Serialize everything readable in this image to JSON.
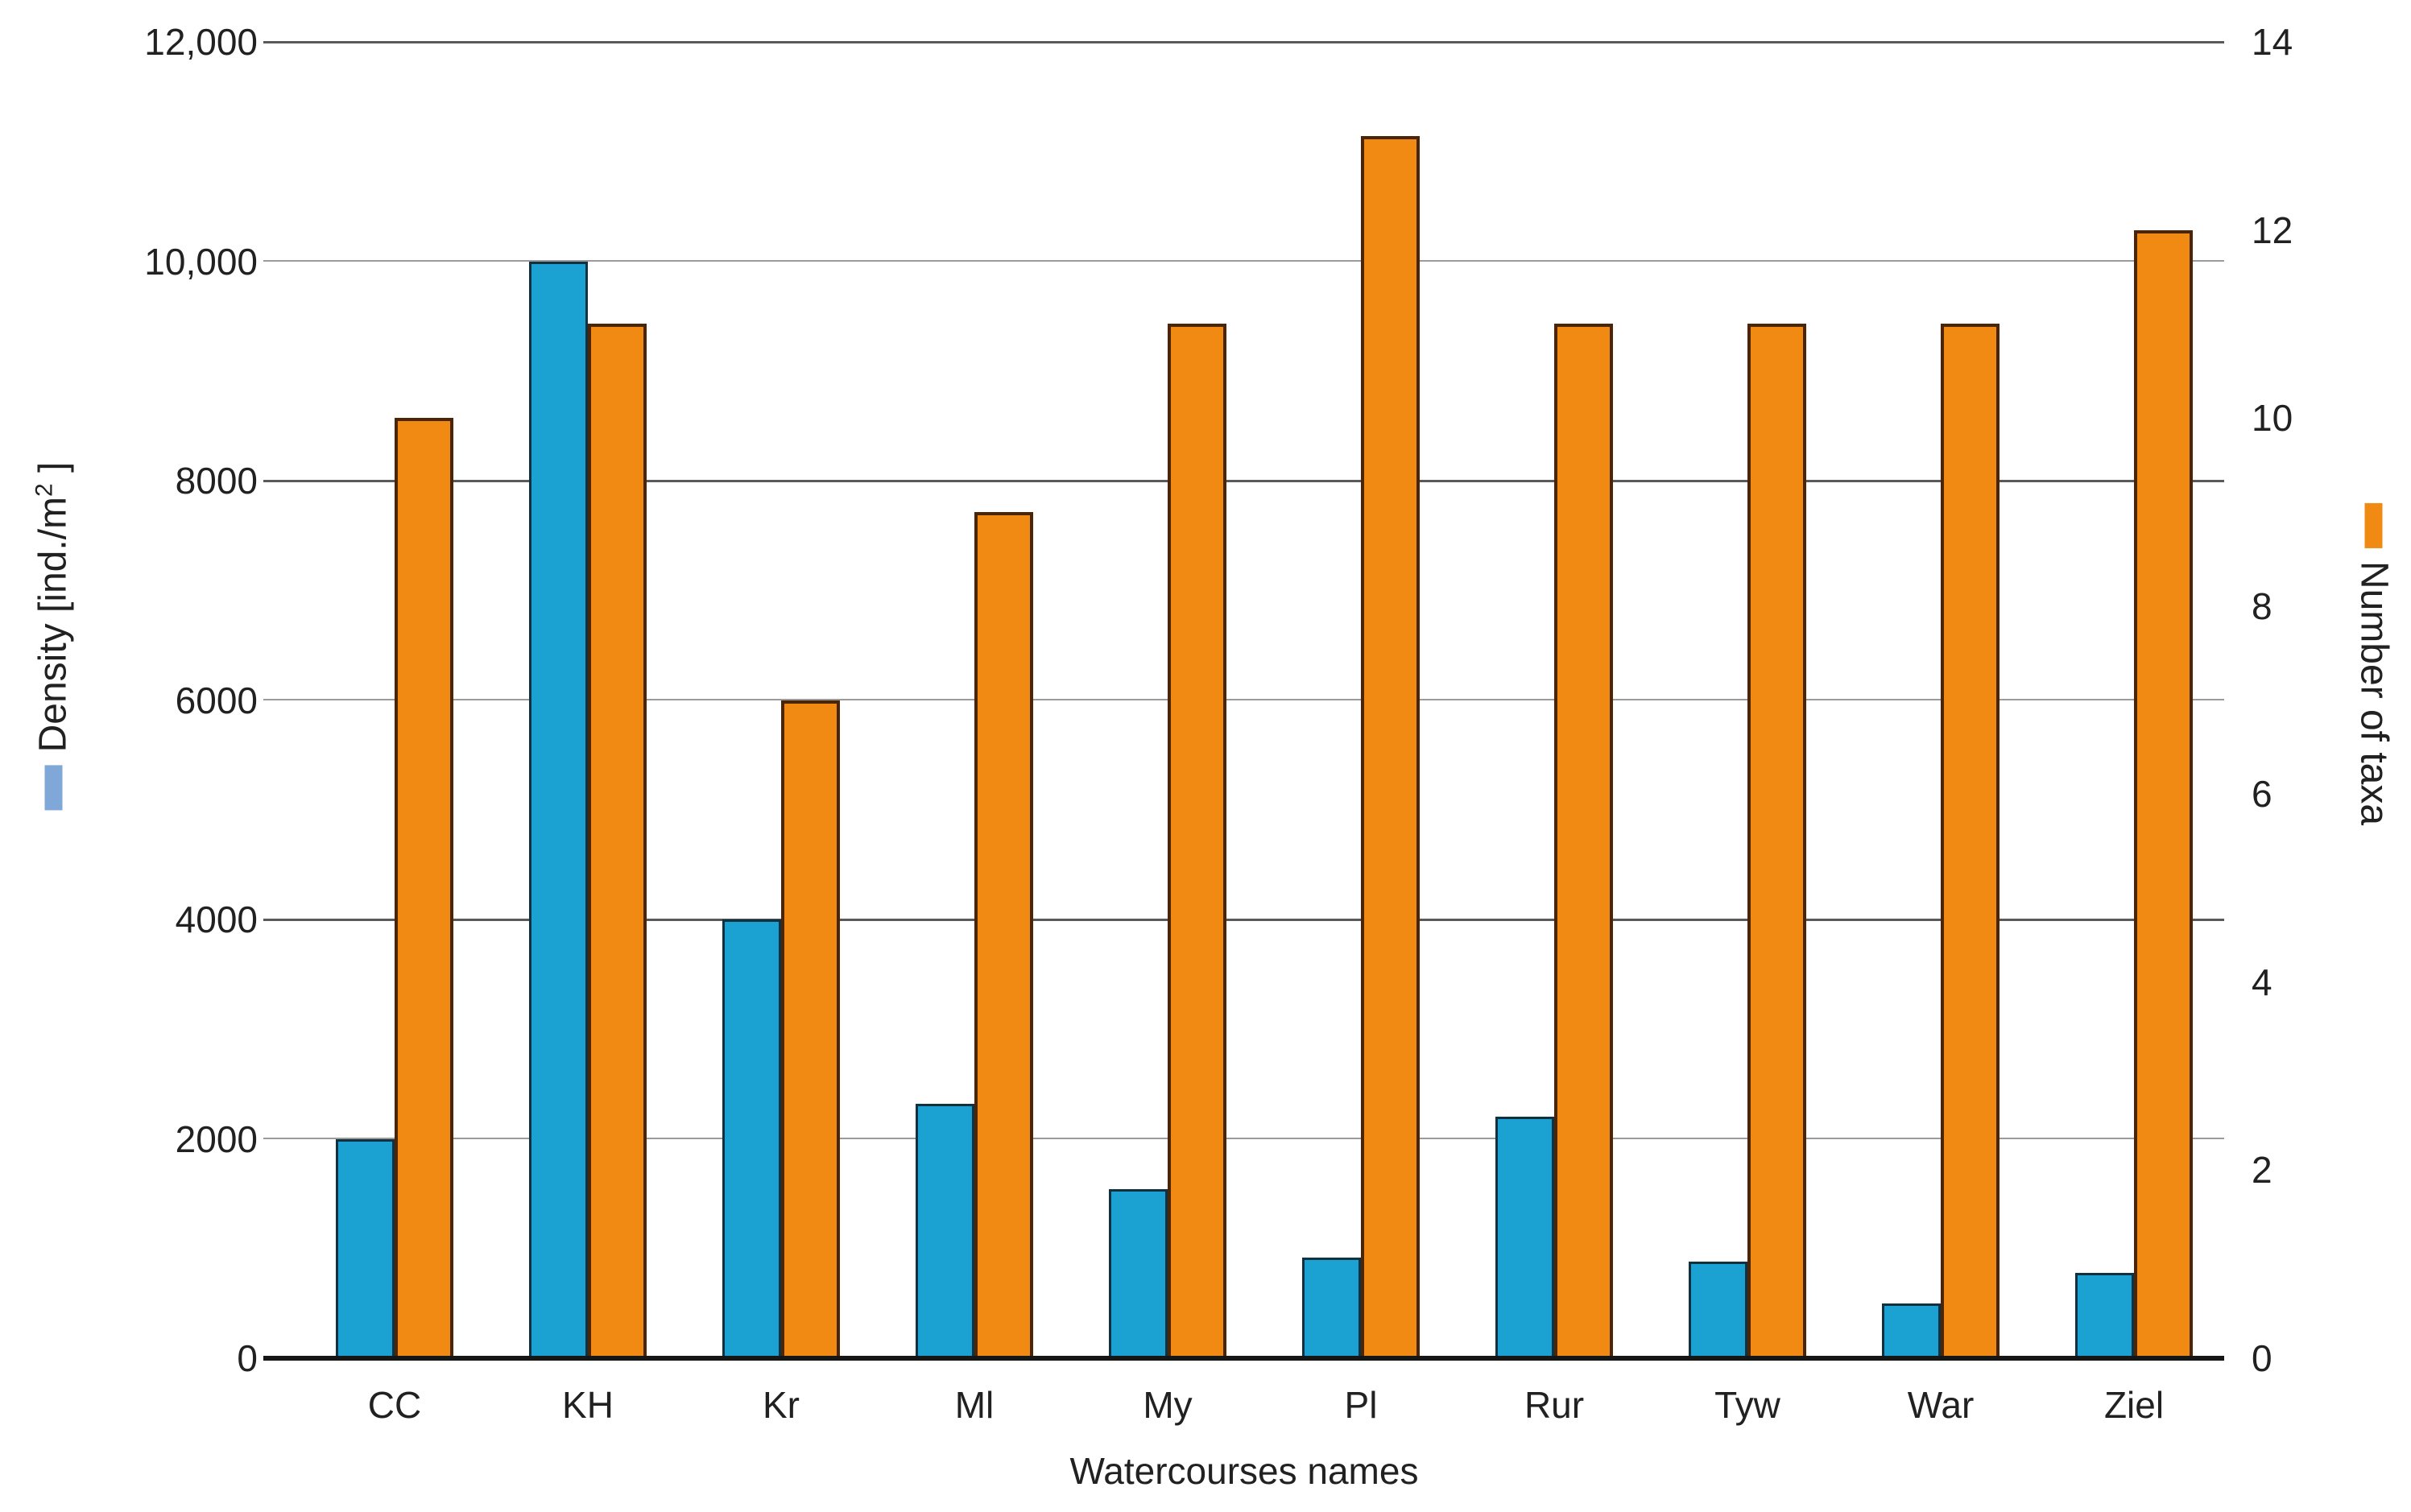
{
  "chart_data": {
    "type": "bar",
    "dual_axis": true,
    "title": "",
    "xlabel": "Watercourses names",
    "categories": [
      "CC",
      "KH",
      "Kr",
      "Ml",
      "My",
      "Pl",
      "Rur",
      "Tyw",
      "War",
      "Ziel"
    ],
    "series": [
      {
        "name": "Density [ind./m2]",
        "axis": "left",
        "type": "bar",
        "color": "#1BA1D2",
        "border_color": "#0F3140",
        "legend_swatch_color": "#7FA8D8",
        "values": [
          2000,
          10000,
          4000,
          2320,
          1540,
          920,
          2200,
          880,
          500,
          780
        ]
      },
      {
        "name": "Number of taxa",
        "axis": "right",
        "type": "bar",
        "color": "#F08A12",
        "border_color": "#4A2508",
        "legend_swatch_color": "#F08A12",
        "values": [
          10,
          11,
          7,
          9,
          11,
          13,
          11,
          11,
          11,
          12
        ]
      }
    ],
    "left_axis": {
      "label_prefix": "Density [ind./m",
      "label_sup": "2",
      "label_suffix": " ]",
      "min": 0,
      "max": 12000,
      "tick_values": [
        12000,
        10000,
        8000,
        6000,
        4000,
        2000,
        0
      ],
      "tick_labels": [
        "12,000",
        "10,000",
        "8000",
        "6000",
        "4000",
        "2000",
        "0"
      ]
    },
    "right_axis": {
      "label": "Number of taxa",
      "min": 0,
      "max": 14,
      "tick_values": [
        14,
        12,
        10,
        8,
        6,
        4,
        2,
        0
      ],
      "tick_labels": [
        "14",
        "12",
        "10",
        "8",
        "6",
        "4",
        "2",
        "0"
      ]
    },
    "grid": true,
    "legend_position": "attached-to-axis-titles",
    "colors": {
      "gridline": "#5a5a5a",
      "baseline": "#161616",
      "text": "#212121",
      "background": "#ffffff"
    }
  }
}
